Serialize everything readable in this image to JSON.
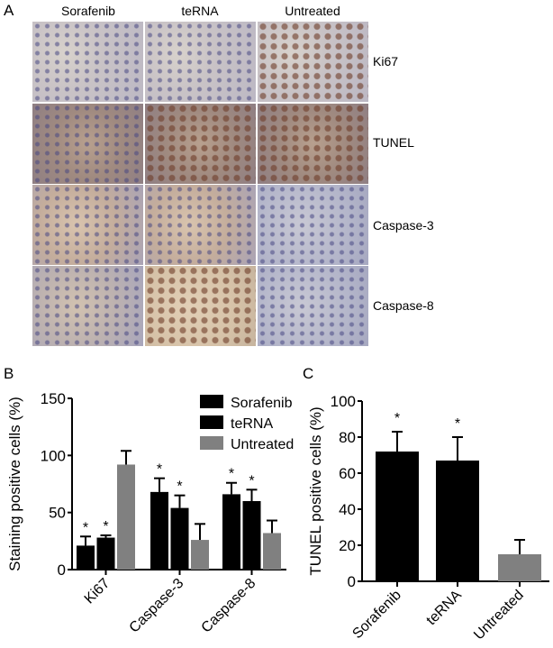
{
  "panel_a": {
    "letter": "A",
    "columns": [
      "Sorafenib",
      "teRNA",
      "Untreated"
    ],
    "rows": [
      "Ki67",
      "TUNEL",
      "Caspase-3",
      "Caspase-8"
    ]
  },
  "chart_data": [
    {
      "panel": "B",
      "type": "bar",
      "ylabel": "Staining positive cells (%)",
      "ylim": [
        0,
        150
      ],
      "yticks": [
        "0",
        "50",
        "100",
        "150"
      ],
      "categories": [
        "Ki67",
        "Caspase-3",
        "Caspase-8"
      ],
      "legend_position": "top-right",
      "series": [
        {
          "name": "Sorafenib",
          "color": "#000000",
          "values": [
            21,
            68,
            66
          ],
          "errors": [
            8,
            12,
            10
          ],
          "significant": [
            true,
            true,
            true
          ]
        },
        {
          "name": "teRNA",
          "color": "#000000",
          "values": [
            28,
            54,
            60
          ],
          "errors": [
            2,
            11,
            10
          ],
          "significant": [
            true,
            true,
            true
          ]
        },
        {
          "name": "Untreated",
          "color": "#808080",
          "values": [
            92,
            26,
            32
          ],
          "errors": [
            12,
            14,
            11
          ],
          "significant": [
            false,
            false,
            false
          ]
        }
      ],
      "annotation": "*"
    },
    {
      "panel": "C",
      "type": "bar",
      "ylabel": "TUNEL positive cells (%)",
      "ylim": [
        0,
        100
      ],
      "yticks": [
        "0",
        "20",
        "40",
        "60",
        "80",
        "100"
      ],
      "categories": [
        "Sorafenib",
        "teRNA",
        "Untreated"
      ],
      "values": [
        72,
        67,
        15
      ],
      "errors": [
        11,
        13,
        8
      ],
      "colors": [
        "#000000",
        "#000000",
        "#808080"
      ],
      "significant": [
        true,
        true,
        false
      ],
      "annotation": "*"
    }
  ]
}
